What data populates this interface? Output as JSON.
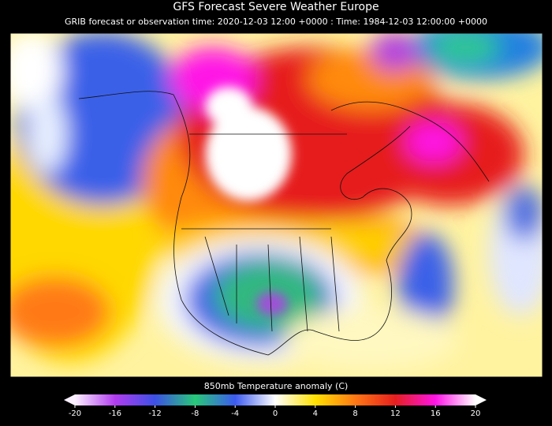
{
  "header": {
    "title": "GFS Forecast    Severe Weather Europe",
    "subtitle": "GRIB forecast or observation time: 2020-12-03 12:00 +0000 : Time: 1984-12-03 12:00:00 +0000"
  },
  "colorbar": {
    "label": "850mb Temperature anomaly (C)",
    "range": [
      -20,
      20
    ],
    "ticks": [
      -20,
      -16,
      -12,
      -8,
      -4,
      0,
      4,
      8,
      12,
      16,
      20
    ],
    "colors": [
      "#fbf0ff",
      "#b23cf0",
      "#3c50e6",
      "#28c878",
      "#3c5af0",
      "#ffffff",
      "#ffe100",
      "#ff7814",
      "#e61e1e",
      "#ff14e6",
      "#ffffff"
    ]
  }
}
